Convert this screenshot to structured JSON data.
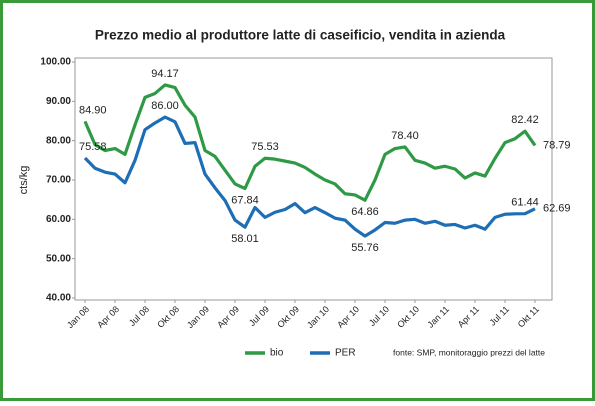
{
  "chart_data": {
    "type": "line",
    "title": "Prezzo medio al produttore latte di caseificio, vendita in azienda",
    "y_label": "cts/kg",
    "source": "fonte: SMP, monitoraggio prezzi del latte",
    "categories": [
      "Jan 08",
      null,
      null,
      "Apr 08",
      null,
      null,
      "Jul 08",
      null,
      null,
      "Okt 08",
      null,
      null,
      "Jan 09",
      null,
      null,
      "Apr 09",
      null,
      null,
      "Jul 09",
      null,
      null,
      "Okt 09",
      null,
      null,
      "Jan 10",
      null,
      null,
      "Apr 10",
      null,
      null,
      "Jul 10",
      null,
      null,
      "Okt 10",
      null,
      null,
      "Jan 11",
      null,
      null,
      "Apr 11",
      null,
      null,
      "Jul 11",
      null,
      null,
      "Okt 11"
    ],
    "ylim": [
      40,
      100
    ],
    "yticks": [
      {
        "value": 40,
        "label": "40.00"
      },
      {
        "value": 50,
        "label": "50.00"
      },
      {
        "value": 60,
        "label": "60.00"
      },
      {
        "value": 70,
        "label": "70.00"
      },
      {
        "value": 80,
        "label": "80.00"
      },
      {
        "value": 90,
        "label": "90.00"
      },
      {
        "value": 100,
        "label": "100.00"
      }
    ],
    "grid": false,
    "legend": "bottom",
    "series": [
      {
        "name": "bio",
        "color": "#2e9a45",
        "values": [
          84.9,
          79,
          77.5,
          78,
          76.5,
          84,
          91,
          92,
          94.17,
          93.5,
          89,
          86,
          77.5,
          76,
          72.5,
          69,
          67.84,
          73.5,
          75.53,
          75.3,
          74.8,
          74.3,
          73.2,
          71.5,
          70,
          69,
          66.5,
          66.2,
          64.86,
          70,
          76.5,
          78,
          78.4,
          75,
          74.3,
          73,
          73.5,
          72.8,
          70.5,
          71.8,
          71,
          75.5,
          79.5,
          80.5,
          82.42,
          78.79
        ],
        "value_labels": [
          "84.90",
          null,
          null,
          null,
          null,
          null,
          null,
          null,
          "94.17",
          null,
          null,
          null,
          null,
          null,
          null,
          null,
          "67.84",
          null,
          "75.53",
          null,
          null,
          null,
          null,
          null,
          null,
          null,
          null,
          null,
          "64.86",
          null,
          null,
          null,
          "78.40",
          null,
          null,
          null,
          null,
          null,
          null,
          null,
          null,
          null,
          null,
          null,
          "82.42",
          "78.79"
        ]
      },
      {
        "name": "PER",
        "color": "#1d6eb4",
        "values": [
          75.58,
          73,
          72,
          71.5,
          69.3,
          75,
          82.8,
          84.5,
          86,
          84.8,
          79.3,
          79.5,
          71.5,
          68,
          64.8,
          59.8,
          58.01,
          63,
          60.5,
          61.8,
          62.5,
          64,
          61.7,
          63,
          61.7,
          60.3,
          59.8,
          57.5,
          55.76,
          57.3,
          59.2,
          59,
          59.8,
          60,
          59,
          59.5,
          58.5,
          58.7,
          57.8,
          58.5,
          57.5,
          60.5,
          61.3,
          61.4,
          61.44,
          62.69
        ],
        "value_labels": [
          "75.58",
          null,
          null,
          null,
          null,
          null,
          null,
          null,
          "86.00",
          null,
          null,
          null,
          null,
          null,
          null,
          null,
          "58.01",
          null,
          null,
          null,
          null,
          null,
          null,
          null,
          null,
          null,
          null,
          null,
          "55.76",
          null,
          null,
          null,
          null,
          null,
          null,
          null,
          null,
          null,
          null,
          null,
          null,
          null,
          null,
          null,
          "61.44",
          "62.69"
        ]
      }
    ]
  }
}
